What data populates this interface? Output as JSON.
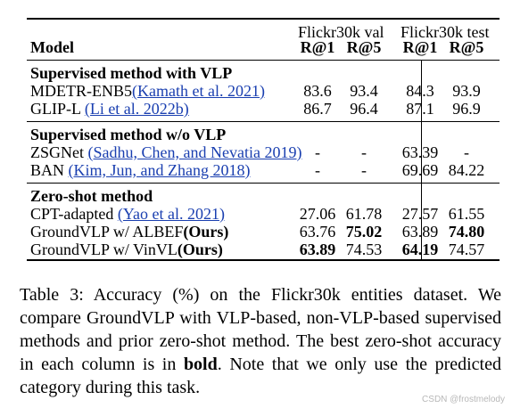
{
  "header": {
    "model": "Model",
    "val_group": "Flickr30k val",
    "test_group": "Flickr30k test",
    "r1": "R@1",
    "r5": "R@5"
  },
  "sections": [
    {
      "title": "Supervised method with VLP",
      "rows": [
        {
          "name": "MDETR-ENB5",
          "cite": "(Kamath et al. 2021)",
          "v1": "83.6",
          "v5": "93.4",
          "t1": "84.3",
          "t5": "93.9"
        },
        {
          "name": "GLIP-L",
          "cite": "(Li et al. 2022b)",
          "v1": "86.7",
          "v5": "96.4",
          "t1": "87.1",
          "t5": "96.9"
        }
      ]
    },
    {
      "title": "Supervised method w/o VLP",
      "rows": [
        {
          "name": "ZSGNet",
          "cite": "(Sadhu, Chen, and Nevatia 2019)",
          "v1": "-",
          "v5": "-",
          "t1": "63.39",
          "t5": "-"
        },
        {
          "name": "BAN",
          "cite": "(Kim, Jun, and Zhang 2018)",
          "v1": "-",
          "v5": "-",
          "t1": "69.69",
          "t5": "84.22"
        }
      ]
    },
    {
      "title": "Zero-shot method",
      "rows": [
        {
          "name": "CPT-adapted",
          "cite": "(Yao et al. 2021)",
          "v1": "27.06",
          "v5": "61.78",
          "t1": "27.57",
          "t5": "61.55"
        },
        {
          "name": "GroundVLP w/ ALBEF",
          "ours": "(Ours)",
          "v1": "63.76",
          "v5": "75.02",
          "t1": "63.89",
          "t5": "74.80"
        },
        {
          "name": "GroundVLP w/ VinVL",
          "ours": "(Ours)",
          "v1": "63.89",
          "v5": "74.53",
          "t1": "64.19",
          "t5": "74.57"
        }
      ]
    }
  ],
  "caption": {
    "lead": "Table 3: Accuracy (%) on the Flickr30k entities dataset. We compare GroundVLP with VLP-based, non-VLP-based supervised methods and prior zero-shot method. The best zero-shot accuracy in each column is in ",
    "bold_word": "bold",
    "tail": ". Note that we only use the predicted category during this task."
  },
  "watermark": "CSDN @frostmelody"
}
